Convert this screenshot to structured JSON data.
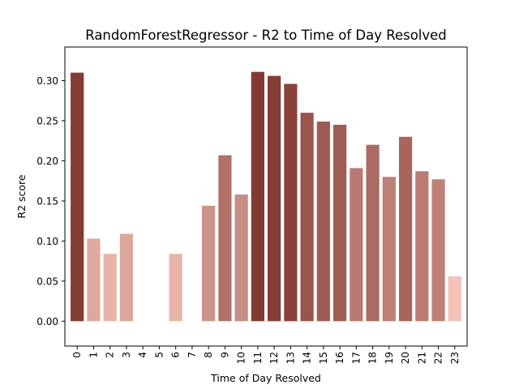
{
  "chart_data": {
    "type": "bar",
    "title": "RandomForestRegressor - R2 to Time of Day Resolved",
    "xlabel": "Time of Day Resolved",
    "ylabel": "R2 score",
    "categories": [
      "0",
      "1",
      "2",
      "3",
      "4",
      "5",
      "6",
      "7",
      "8",
      "9",
      "10",
      "11",
      "12",
      "13",
      "14",
      "15",
      "16",
      "17",
      "18",
      "19",
      "20",
      "21",
      "22",
      "23"
    ],
    "values": [
      0.31,
      0.103,
      0.084,
      0.109,
      null,
      null,
      0.084,
      null,
      0.144,
      0.207,
      0.158,
      0.311,
      0.306,
      0.296,
      0.26,
      0.249,
      0.245,
      0.191,
      0.22,
      0.18,
      0.23,
      0.187,
      0.177,
      0.056
    ],
    "ylim": [
      -0.031,
      0.342
    ],
    "yticks": [
      "0.00",
      "0.05",
      "0.10",
      "0.15",
      "0.20",
      "0.25",
      "0.30"
    ],
    "ytick_values": [
      0.0,
      0.05,
      0.1,
      0.15,
      0.2,
      0.25,
      0.3
    ],
    "grid": false,
    "legend": "none",
    "color_low": "#f4c2b8",
    "color_high": "#833a33"
  }
}
